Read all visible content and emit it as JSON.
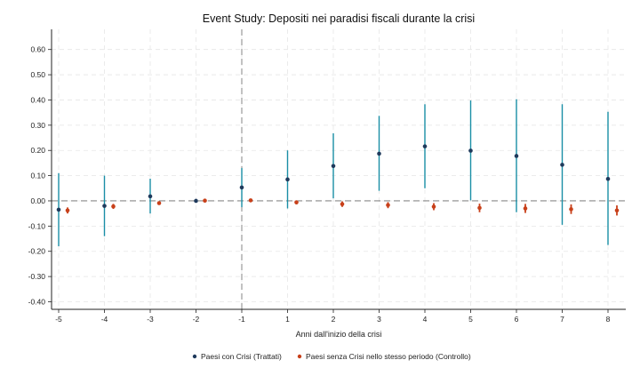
{
  "chart_data": {
    "type": "scatter",
    "title": "Event Study: Depositi nei paradisi fiscali durante la crisi",
    "xlabel": "Anni dall'inizio della crisi",
    "ylabel": "",
    "x": [
      -5,
      -4,
      -3,
      -2,
      -1,
      1,
      2,
      3,
      4,
      5,
      6,
      7,
      8
    ],
    "x_tick_labels": [
      "-5",
      "-4",
      "-3",
      "-2",
      "-1",
      "1",
      "2",
      "3",
      "4",
      "5",
      "6",
      "7",
      "8"
    ],
    "y_ticks": [
      0.6,
      0.5,
      0.4,
      0.3,
      0.2,
      0.1,
      0.0,
      -0.1,
      -0.2,
      -0.3,
      -0.4
    ],
    "y_tick_labels": [
      "0.60",
      "0.50",
      "0.40",
      "0.30",
      "0.20",
      "0.10",
      "0.00",
      "-0.10",
      "-0.20",
      "-0.30",
      "-0.40"
    ],
    "ylim": [
      -0.43,
      0.68
    ],
    "grid": true,
    "reference_lines": {
      "horizontal_y": 0,
      "vertical_x": -1
    },
    "legend_position": "bottom",
    "series": [
      {
        "name": "Paesi con Crisi (Trattati)",
        "point_color": "#1f3a5c",
        "ci_color": "#1a8fa6",
        "values": [
          -0.035,
          -0.02,
          0.018,
          0.0,
          0.053,
          0.085,
          0.138,
          0.187,
          0.216,
          0.199,
          0.178,
          0.143,
          0.087
        ],
        "ci_low": [
          -0.18,
          -0.14,
          -0.05,
          -0.002,
          -0.025,
          -0.03,
          0.01,
          0.04,
          0.05,
          0.002,
          -0.045,
          -0.095,
          -0.175
        ],
        "ci_high": [
          0.11,
          0.1,
          0.088,
          0.003,
          0.13,
          0.2,
          0.268,
          0.337,
          0.383,
          0.398,
          0.403,
          0.383,
          0.353
        ]
      },
      {
        "name": "Paesi senza Crisi nello stesso periodo (Controllo)",
        "point_color": "#c8401a",
        "ci_color": "#c8401a",
        "values": [
          -0.038,
          -0.022,
          -0.009,
          0.001,
          0.002,
          -0.006,
          -0.013,
          -0.017,
          -0.023,
          -0.028,
          -0.03,
          -0.033,
          -0.038
        ],
        "ci_low": [
          -0.05,
          -0.032,
          -0.016,
          -0.003,
          -0.002,
          -0.014,
          -0.024,
          -0.029,
          -0.037,
          -0.045,
          -0.048,
          -0.052,
          -0.058
        ],
        "ci_high": [
          -0.026,
          -0.012,
          -0.002,
          0.005,
          0.006,
          0.002,
          -0.002,
          -0.005,
          -0.009,
          -0.011,
          -0.012,
          -0.014,
          -0.018
        ]
      }
    ]
  }
}
